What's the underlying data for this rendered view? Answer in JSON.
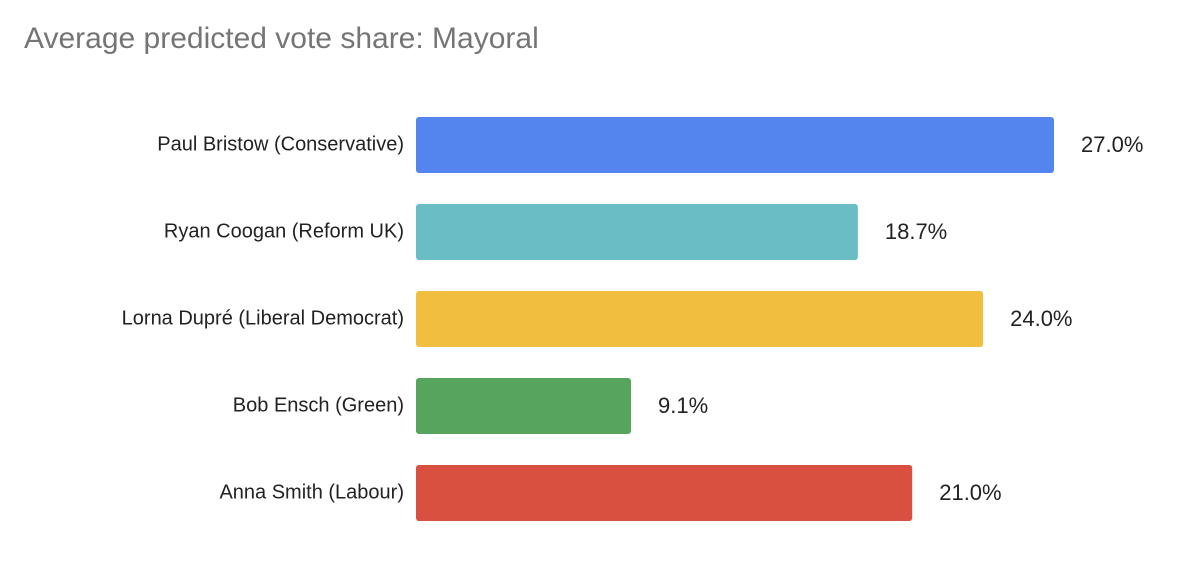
{
  "chart_data": {
    "type": "bar",
    "orientation": "horizontal",
    "title": "Average predicted vote share: Mayoral",
    "xlabel": "",
    "ylabel": "",
    "categories": [
      "Paul Bristow (Conservative)",
      "Ryan Coogan (Reform UK)",
      "Lorna Dupré (Liberal Democrat)",
      "Bob Ensch (Green)",
      "Anna Smith (Labour)"
    ],
    "values": [
      27.0,
      18.7,
      24.0,
      9.1,
      21.0
    ],
    "value_labels": [
      "27.0%",
      "18.7%",
      "24.0%",
      "9.1%",
      "21.0%"
    ],
    "colors": [
      "#5484ED",
      "#6ABCC5",
      "#F2BE3F",
      "#57A55D",
      "#D95040"
    ],
    "xlim": [
      0,
      27.0
    ],
    "grid": false,
    "legend": "none"
  }
}
